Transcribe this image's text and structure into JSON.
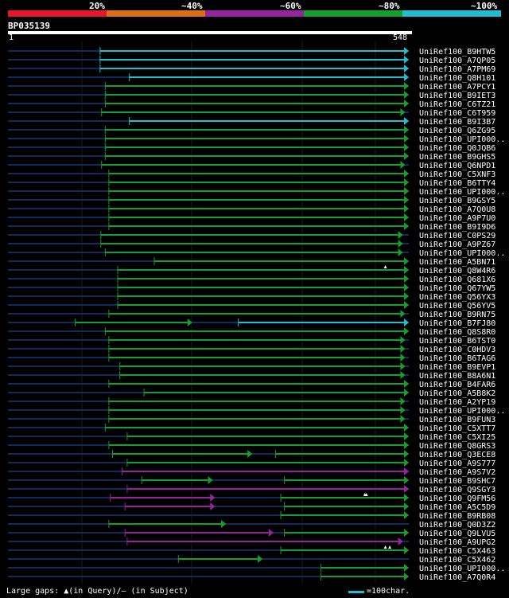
{
  "legend": {
    "segments": [
      {
        "label": "20%",
        "color": "#e8152c"
      },
      {
        "label": "~40%",
        "color": "#e06c16"
      },
      {
        "label": "~60%",
        "color": "#98239e"
      },
      {
        "label": "~80%",
        "color": "#14a02c"
      },
      {
        "label": "~100%",
        "color": "#1fbfcf"
      }
    ]
  },
  "query": {
    "title": "BP035139",
    "start": "1",
    "end": "548"
  },
  "footer": {
    "gaps": "Large gaps: ▲(in Query)/– (in Subject)",
    "scale": "=100char."
  },
  "chart_data": {
    "type": "alignment-overview",
    "query_length": 548,
    "colors": {
      "cyan": "#1fbfcf",
      "green": "#14a02c",
      "purple": "#98239e",
      "navy": "#152a5c"
    },
    "hits": [
      {
        "name": "UniRef100_B9HTW5",
        "segs": [
          [
            126,
            548,
            "cyan"
          ]
        ]
      },
      {
        "name": "UniRef100_A7QP05",
        "segs": [
          [
            126,
            548,
            "cyan"
          ]
        ]
      },
      {
        "name": "UniRef100_A7PM69",
        "segs": [
          [
            126,
            548,
            "cyan"
          ]
        ]
      },
      {
        "name": "UniRef100_Q8H101",
        "segs": [
          [
            166,
            548,
            "cyan"
          ]
        ]
      },
      {
        "name": "UniRef100_A7PCY1",
        "segs": [
          [
            133,
            548,
            "green"
          ]
        ]
      },
      {
        "name": "UniRef100_B9IET3",
        "segs": [
          [
            133,
            548,
            "green"
          ]
        ]
      },
      {
        "name": "UniRef100_C6TZ21",
        "segs": [
          [
            133,
            548,
            "green"
          ]
        ]
      },
      {
        "name": "UniRef100_C6T959",
        "segs": [
          [
            128,
            543,
            "green"
          ]
        ]
      },
      {
        "name": "UniRef100_B9I3B7",
        "segs": [
          [
            166,
            548,
            "cyan"
          ]
        ]
      },
      {
        "name": "UniRef100_Q6ZG95",
        "segs": [
          [
            133,
            548,
            "green"
          ]
        ]
      },
      {
        "name": "UniRef100_UPI000..",
        "segs": [
          [
            133,
            548,
            "green"
          ]
        ]
      },
      {
        "name": "UniRef100_Q0JQB6",
        "segs": [
          [
            133,
            548,
            "green"
          ]
        ]
      },
      {
        "name": "UniRef100_B9GHS5",
        "segs": [
          [
            133,
            548,
            "green"
          ]
        ]
      },
      {
        "name": "UniRef100_Q6NPD1",
        "segs": [
          [
            128,
            543,
            "green"
          ]
        ]
      },
      {
        "name": "UniRef100_C5XNF3",
        "segs": [
          [
            138,
            548,
            "green"
          ]
        ]
      },
      {
        "name": "UniRef100_B6TTY4",
        "segs": [
          [
            138,
            548,
            "green"
          ]
        ]
      },
      {
        "name": "UniRef100_UPI000..",
        "segs": [
          [
            138,
            548,
            "green"
          ]
        ]
      },
      {
        "name": "UniRef100_B9GSY5",
        "segs": [
          [
            138,
            548,
            "green"
          ]
        ]
      },
      {
        "name": "UniRef100_A7Q0U8",
        "segs": [
          [
            138,
            548,
            "green"
          ]
        ]
      },
      {
        "name": "UniRef100_A9P7U0",
        "segs": [
          [
            138,
            548,
            "green"
          ]
        ]
      },
      {
        "name": "UniRef100_B9I9D6",
        "segs": [
          [
            138,
            548,
            "green"
          ]
        ]
      },
      {
        "name": "UniRef100_C0PS29",
        "segs": [
          [
            127,
            540,
            "green"
          ]
        ]
      },
      {
        "name": "UniRef100_A9PZ67",
        "segs": [
          [
            127,
            540,
            "green"
          ]
        ]
      },
      {
        "name": "UniRef100_UPI000..",
        "segs": [
          [
            133,
            540,
            "green"
          ]
        ]
      },
      {
        "name": "UniRef100_A5BN71",
        "segs": [
          [
            200,
            548,
            "green"
          ]
        ]
      },
      {
        "name": "UniRef100_Q8W4R6",
        "segs": [
          [
            150,
            548,
            "green"
          ]
        ]
      },
      {
        "name": "UniRef100_Q681X6",
        "segs": [
          [
            150,
            548,
            "green"
          ]
        ]
      },
      {
        "name": "UniRef100_Q67YW5",
        "segs": [
          [
            150,
            548,
            "green"
          ]
        ]
      },
      {
        "name": "UniRef100_Q56YX3",
        "segs": [
          [
            150,
            548,
            "green"
          ]
        ]
      },
      {
        "name": "UniRef100_Q56YV5",
        "segs": [
          [
            150,
            548,
            "green"
          ]
        ]
      },
      {
        "name": "UniRef100_B9RN75",
        "segs": [
          [
            138,
            543,
            "green"
          ]
        ]
      },
      {
        "name": "UniRef100_B7FJ80",
        "segs": [
          [
            92,
            252,
            "green"
          ],
          [
            315,
            548,
            "cyan"
          ]
        ]
      },
      {
        "name": "UniRef100_Q8S8R0",
        "segs": [
          [
            133,
            548,
            "green"
          ]
        ]
      },
      {
        "name": "UniRef100_B6TST0",
        "segs": [
          [
            138,
            543,
            "green"
          ]
        ]
      },
      {
        "name": "UniRef100_C0HDV3",
        "segs": [
          [
            138,
            543,
            "green"
          ]
        ]
      },
      {
        "name": "UniRef100_B6TAG6",
        "segs": [
          [
            138,
            543,
            "green"
          ]
        ]
      },
      {
        "name": "UniRef100_B9EVP1",
        "segs": [
          [
            153,
            543,
            "green"
          ]
        ]
      },
      {
        "name": "UniRef100_B8A6N1",
        "segs": [
          [
            153,
            543,
            "green"
          ]
        ]
      },
      {
        "name": "UniRef100_B4FAR6",
        "segs": [
          [
            138,
            548,
            "green"
          ]
        ]
      },
      {
        "name": "UniRef100_A5B8K2",
        "segs": [
          [
            186,
            548,
            "green"
          ]
        ]
      },
      {
        "name": "UniRef100_A2YP19",
        "segs": [
          [
            138,
            543,
            "green"
          ]
        ]
      },
      {
        "name": "UniRef100_UPI000..",
        "segs": [
          [
            138,
            543,
            "green"
          ]
        ]
      },
      {
        "name": "UniRef100_B9FUN3",
        "segs": [
          [
            138,
            543,
            "green"
          ]
        ]
      },
      {
        "name": "UniRef100_C5XTT7",
        "segs": [
          [
            133,
            548,
            "green"
          ]
        ]
      },
      {
        "name": "UniRef100_C5XI25",
        "segs": [
          [
            163,
            548,
            "green"
          ]
        ]
      },
      {
        "name": "UniRef100_Q8GRS3",
        "segs": [
          [
            138,
            548,
            "green"
          ]
        ]
      },
      {
        "name": "UniRef100_Q3ECE8",
        "segs": [
          [
            143,
            334,
            "green"
          ],
          [
            366,
            548,
            "green"
          ]
        ]
      },
      {
        "name": "UniRef100_A9S777",
        "segs": [
          [
            163,
            548,
            "green"
          ]
        ]
      },
      {
        "name": "UniRef100_A9S7V2",
        "segs": [
          [
            156,
            548,
            "purple"
          ]
        ]
      },
      {
        "name": "UniRef100_B9SHC7",
        "segs": [
          [
            183,
            280,
            "green"
          ],
          [
            378,
            548,
            "green"
          ]
        ]
      },
      {
        "name": "UniRef100_Q9SGY3",
        "segs": [
          [
            163,
            548,
            "purple"
          ]
        ]
      },
      {
        "name": "UniRef100_Q9FM56",
        "segs": [
          [
            140,
            283,
            "purple"
          ],
          [
            373,
            548,
            "green"
          ]
        ]
      },
      {
        "name": "UniRef100_A5C5D9",
        "segs": [
          [
            160,
            283,
            "purple"
          ],
          [
            378,
            548,
            "green"
          ]
        ]
      },
      {
        "name": "UniRef100_B9RB08",
        "segs": [
          [
            373,
            548,
            "green"
          ]
        ]
      },
      {
        "name": "UniRef100_Q0D3Z2",
        "segs": [
          [
            138,
            298,
            "green"
          ]
        ]
      },
      {
        "name": "UniRef100_Q9LVU5",
        "segs": [
          [
            160,
            363,
            "purple"
          ],
          [
            378,
            548,
            "green"
          ]
        ]
      },
      {
        "name": "UniRef100_A9UPG2",
        "segs": [
          [
            163,
            540,
            "purple"
          ]
        ]
      },
      {
        "name": "UniRef100_C5X463",
        "segs": [
          [
            373,
            548,
            "green"
          ]
        ]
      },
      {
        "name": "UniRef100_C5X462",
        "segs": [
          [
            233,
            348,
            "green"
          ]
        ]
      },
      {
        "name": "UniRef100_UPI000..",
        "segs": [
          [
            428,
            548,
            "green"
          ]
        ]
      },
      {
        "name": "UniRef100_A7Q0R4",
        "segs": [
          [
            428,
            548,
            "green"
          ]
        ]
      }
    ],
    "query_gaps": [
      {
        "hit": 24,
        "pos": 516
      },
      {
        "hit": 50,
        "pos": 488
      },
      {
        "hit": 50,
        "pos": 490
      },
      {
        "hit": 56,
        "pos": 516
      },
      {
        "hit": 56,
        "pos": 522
      }
    ]
  }
}
